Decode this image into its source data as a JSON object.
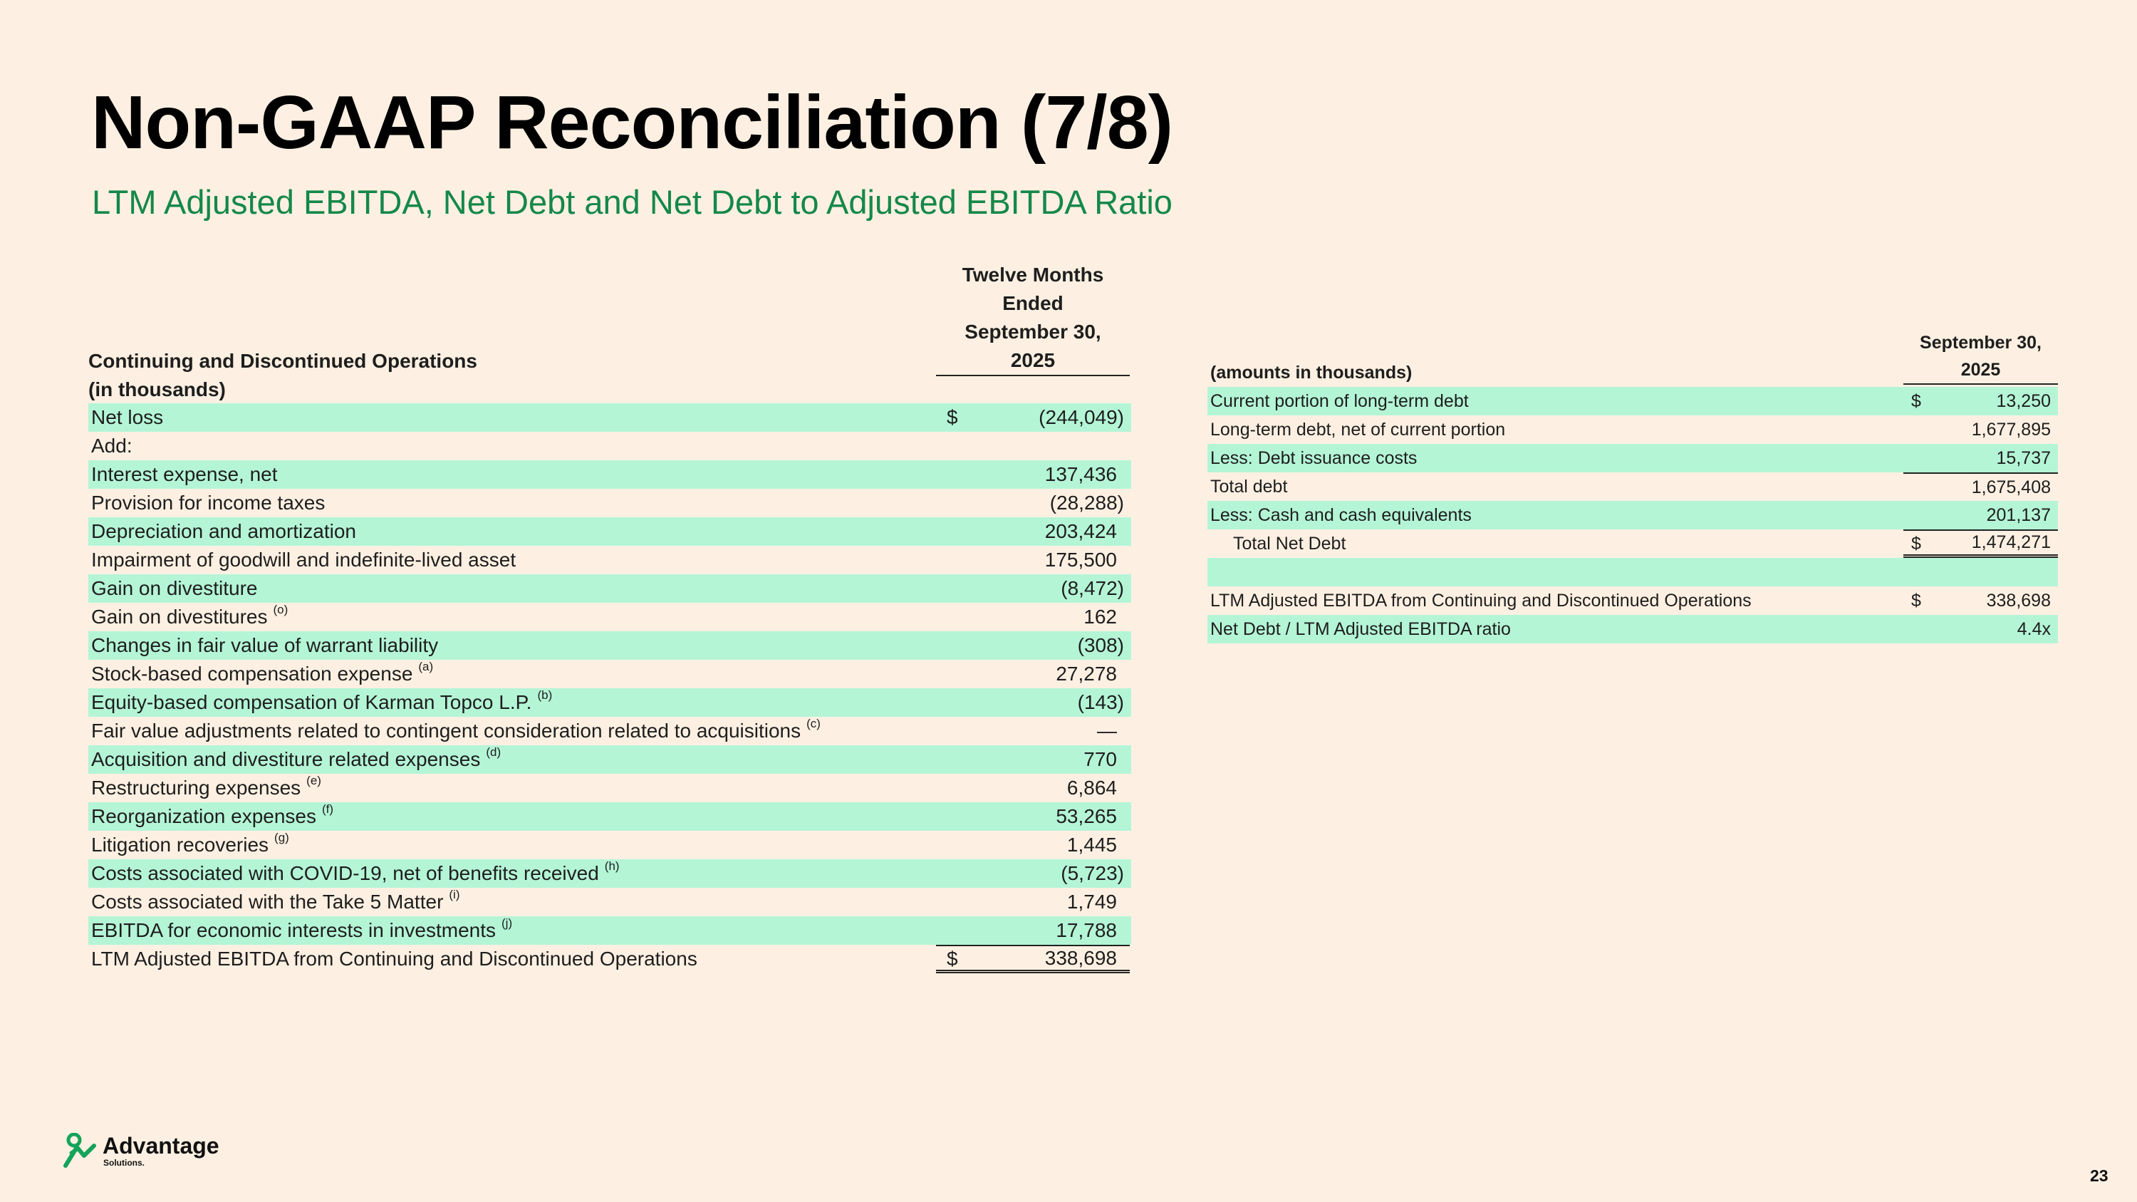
{
  "header": {
    "title": "Non-GAAP Reconciliation (7/8)",
    "subtitle": "LTM Adjusted EBITDA, Net Debt and Net Debt to Adjusted EBITDA Ratio"
  },
  "left_table": {
    "row_header": [
      "Continuing and Discontinued Operations",
      "(in thousands)"
    ],
    "column_header": [
      "Twelve Months",
      "Ended",
      "September 30,",
      "2025"
    ],
    "rows": [
      {
        "label": "Net loss",
        "currency": "$",
        "value": "(244,049)"
      },
      {
        "label": "Add:"
      },
      {
        "label": "Interest expense, net",
        "value": "137,436"
      },
      {
        "label": "Provision for income taxes",
        "value": "(28,288)"
      },
      {
        "label": "Depreciation and amortization",
        "value": "203,424"
      },
      {
        "label": "Impairment of goodwill and indefinite-lived asset",
        "value": "175,500"
      },
      {
        "label": "Gain on divestiture",
        "value": "(8,472)"
      },
      {
        "label": "Gain on divestitures",
        "note": "(o)",
        "value": "162"
      },
      {
        "label": "Changes in fair value of warrant liability",
        "value": "(308)"
      },
      {
        "label": "Stock-based compensation expense",
        "note": "(a)",
        "value": "27,278"
      },
      {
        "label": "Equity-based compensation of Karman Topco L.P.",
        "note": "(b)",
        "value": "(143)"
      },
      {
        "label": "Fair value adjustments related to contingent consideration related to acquisitions",
        "note": "(c)",
        "value": "—"
      },
      {
        "label": "Acquisition and divestiture related expenses",
        "note": "(d)",
        "value": "770"
      },
      {
        "label": "Restructuring expenses",
        "note": "(e)",
        "value": "6,864"
      },
      {
        "label": "Reorganization expenses",
        "note": "(f)",
        "value": "53,265"
      },
      {
        "label": "Litigation recoveries",
        "note": "(g)",
        "value": "1,445"
      },
      {
        "label": "Costs associated with COVID-19, net of benefits received",
        "note": "(h)",
        "value": "(5,723)"
      },
      {
        "label": "Costs associated with the Take 5 Matter",
        "note": "(i)",
        "value": "1,749"
      },
      {
        "label": "EBITDA for economic interests in investments",
        "note": "(j)",
        "value": "17,788"
      },
      {
        "label": "LTM Adjusted EBITDA from Continuing and Discontinued Operations",
        "currency": "$",
        "value": "338,698"
      }
    ]
  },
  "right_table": {
    "row_header": "(amounts in thousands)",
    "column_header": [
      "September 30,",
      "2025"
    ],
    "debt_rows": [
      {
        "label": "Current portion of long-term debt",
        "currency": "$",
        "value": "13,250"
      },
      {
        "label": "Long-term debt, net of current portion",
        "value": "1,677,895"
      },
      {
        "label": "Less: Debt issuance costs",
        "value": "15,737"
      },
      {
        "label": "Total debt",
        "value": "1,675,408"
      },
      {
        "label": "Less: Cash and cash equivalents",
        "value": "201,137"
      },
      {
        "label": "Total Net Debt",
        "currency": "$",
        "value": "1,474,271"
      }
    ],
    "ratio_rows": [
      {
        "label": "LTM Adjusted EBITDA from Continuing and Discontinued Operations",
        "currency": "$",
        "value": "338,698"
      },
      {
        "label": "Net Debt / LTM Adjusted EBITDA ratio",
        "value": "4.4x"
      }
    ]
  },
  "footer": {
    "logo": "Advantage",
    "logo_sub": "Solutions.",
    "page_number": "23"
  }
}
